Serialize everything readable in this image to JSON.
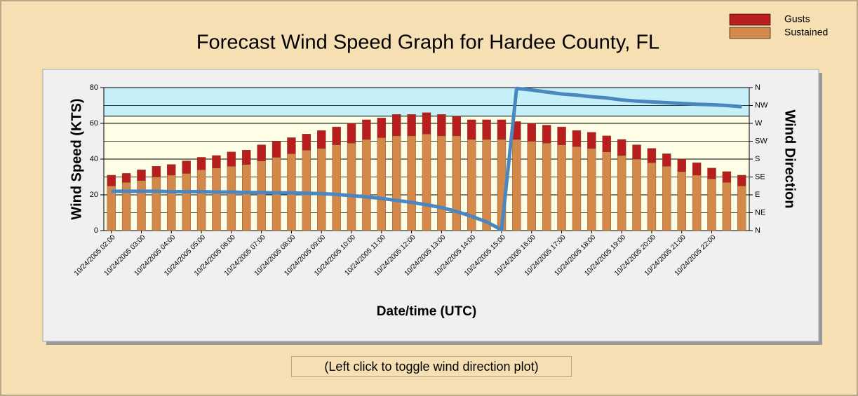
{
  "chart_data": {
    "type": "bar",
    "stacked": true,
    "title": "Forecast Wind Speed Graph for Hardee County, FL",
    "ylabel": "Wind Speed (KTS)",
    "y2label": "Wind Direction",
    "xlabel": "Date/time (UTC)",
    "toggle_label": "(Left click to toggle wind direction plot)",
    "categories": [
      "10/24/2005 02:00",
      null,
      "10/24/2005 03:00",
      null,
      "10/24/2005 04:00",
      null,
      "10/24/2005 05:00",
      null,
      "10/24/2005 06:00",
      null,
      "10/24/2005 07:00",
      null,
      "10/24/2005 08:00",
      null,
      "10/24/2005 09:00",
      null,
      "10/24/2005 10:00",
      null,
      "10/24/2005 11:00",
      null,
      "10/24/2005 12:00",
      null,
      "10/24/2005 13:00",
      null,
      "10/24/2005 14:00",
      null,
      "10/24/2005 15:00",
      null,
      "10/24/2005 16:00",
      null,
      "10/24/2005 17:00",
      null,
      "10/24/2005 18:00",
      null,
      "10/24/2005 19:00",
      null,
      "10/24/2005 20:00",
      null,
      "10/24/2005 21:00",
      null,
      "10/24/2005 22:00",
      null,
      null
    ],
    "series": [
      {
        "name": "Sustained",
        "color": "#d4894a",
        "values": [
          25,
          27,
          28,
          30,
          31,
          32,
          34,
          35,
          36,
          37,
          39,
          41,
          43,
          45,
          46,
          48,
          49,
          51,
          52,
          53,
          53,
          54,
          53,
          53,
          51,
          51,
          51,
          51,
          50,
          49,
          48,
          47,
          46,
          44,
          42,
          40,
          38,
          36,
          33,
          31,
          29,
          27,
          25
        ]
      },
      {
        "name": "Gusts",
        "color": "#b81e1e",
        "values": [
          6,
          5,
          6,
          6,
          6,
          7,
          7,
          7,
          8,
          8,
          9,
          9,
          9,
          9,
          10,
          10,
          11,
          11,
          11,
          12,
          12,
          12,
          12,
          11,
          11,
          11,
          11,
          10,
          10,
          10,
          10,
          9,
          9,
          9,
          9,
          8,
          8,
          7,
          7,
          7,
          6,
          6,
          6
        ]
      }
    ],
    "direction": {
      "axis": "y2",
      "color": "#4a86c0",
      "values": [
        99,
        99,
        99,
        99,
        98,
        98,
        98,
        97,
        97,
        96,
        96,
        95,
        95,
        94,
        93,
        91,
        88,
        85,
        81,
        76,
        71,
        65,
        58,
        48,
        36,
        22,
        2,
        358,
        354,
        349,
        344,
        341,
        337,
        334,
        329,
        326,
        324,
        322,
        320,
        318,
        317,
        315,
        312
      ]
    },
    "ylim": [
      0,
      80
    ],
    "yticks": [
      0,
      20,
      40,
      60,
      80
    ],
    "minor_yticks": [
      10,
      30,
      50,
      70
    ],
    "y2lim": [
      0,
      360
    ],
    "y2ticks": [
      {
        "value": 0,
        "label": "N"
      },
      {
        "value": 45,
        "label": "NE"
      },
      {
        "value": 90,
        "label": "E"
      },
      {
        "value": 135,
        "label": "SE"
      },
      {
        "value": 180,
        "label": "S"
      },
      {
        "value": 225,
        "label": "SW"
      },
      {
        "value": 270,
        "label": "W"
      },
      {
        "value": 315,
        "label": "NW"
      },
      {
        "value": 360,
        "label": "N"
      }
    ],
    "bands": [
      {
        "from": 0,
        "to": 64,
        "color": "#fefde6"
      },
      {
        "from": 64,
        "to": 80,
        "color": "#c6f0f8"
      }
    ],
    "grid": true,
    "legend": "top-right"
  }
}
